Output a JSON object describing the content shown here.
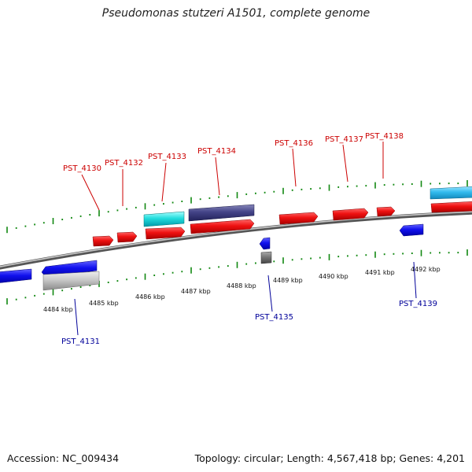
{
  "title": "Pseudomonas stutzeri A1501, complete genome",
  "footer": {
    "accession": "Accession: NC_009434",
    "summary": "Topology: circular; Length: 4,567,418 bp; Genes: 4,201"
  },
  "colors": {
    "forward_label": "#cc0000",
    "reverse_label": "#000099",
    "tick": "#118811",
    "backbone": "#888888"
  },
  "scale": {
    "ticks": [
      {
        "label": "4484 kbp",
        "pos": 4484
      },
      {
        "label": "4485 kbp",
        "pos": 4485
      },
      {
        "label": "4486 kbp",
        "pos": 4486
      },
      {
        "label": "4487 kbp",
        "pos": 4487
      },
      {
        "label": "4488 kbp",
        "pos": 4488
      },
      {
        "label": "4489 kbp",
        "pos": 4489
      },
      {
        "label": "4490 kbp",
        "pos": 4490
      },
      {
        "label": "4491 kbp",
        "pos": 4491
      },
      {
        "label": "4492 kbp",
        "pos": 4492
      }
    ]
  },
  "gene_labels": [
    {
      "id": "lbl-4130",
      "text": "PST_4130",
      "strand": "forward"
    },
    {
      "id": "lbl-4132",
      "text": "PST_4132",
      "strand": "forward"
    },
    {
      "id": "lbl-4133",
      "text": "PST_4133",
      "strand": "forward"
    },
    {
      "id": "lbl-4134",
      "text": "PST_4134",
      "strand": "forward"
    },
    {
      "id": "lbl-4136",
      "text": "PST_4136",
      "strand": "forward"
    },
    {
      "id": "lbl-4137",
      "text": "PST_4137",
      "strand": "forward"
    },
    {
      "id": "lbl-4138",
      "text": "PST_4138",
      "strand": "forward"
    },
    {
      "id": "lbl-4131",
      "text": "PST_4131",
      "strand": "reverse"
    },
    {
      "id": "lbl-4135",
      "text": "PST_4135",
      "strand": "reverse"
    },
    {
      "id": "lbl-4139",
      "text": "PST_4139",
      "strand": "reverse"
    }
  ]
}
